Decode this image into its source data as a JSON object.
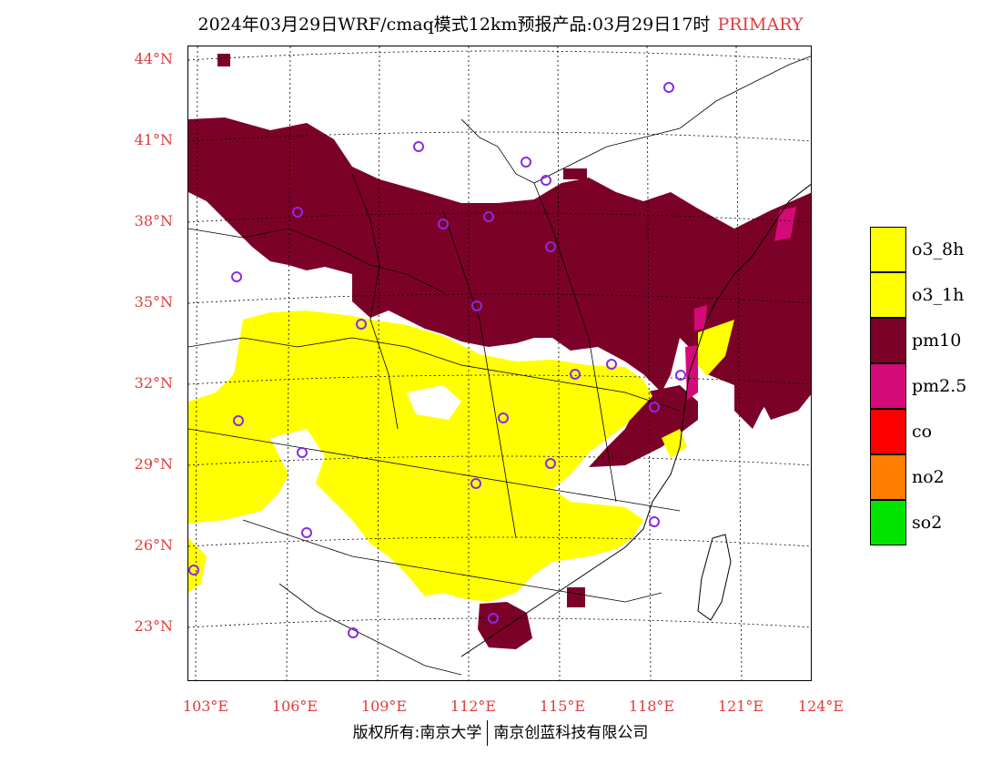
{
  "title": {
    "main": "2024年03月29日WRF/cmaq模式12km预报产品:03月29日17时",
    "tag": "PRIMARY"
  },
  "axes": {
    "lat_labels": [
      "44°N",
      "41°N",
      "38°N",
      "35°N",
      "32°N",
      "29°N",
      "26°N",
      "23°N"
    ],
    "lon_labels": [
      "103°E",
      "106°E",
      "109°E",
      "112°E",
      "115°E",
      "118°E",
      "121°E",
      "124°E"
    ]
  },
  "legend": [
    {
      "label": "o3_8h",
      "color": "#ffff00"
    },
    {
      "label": "o3_1h",
      "color": "#ffff00"
    },
    {
      "label": "pm10",
      "color": "#7c0128"
    },
    {
      "label": "pm2.5",
      "color": "#d40a78"
    },
    {
      "label": "co",
      "color": "#ff0000"
    },
    {
      "label": "no2",
      "color": "#ff7e00"
    },
    {
      "label": "so2",
      "color": "#00e400"
    }
  ],
  "colors": {
    "pm10": "#7c0128",
    "o3": "#ffff00",
    "pm25": "#d40a78",
    "station": "#8a2be2",
    "label": "#e03b3b"
  },
  "footer": {
    "left": "版权所有:南京大学",
    "right": "南京创蓝科技有限公司"
  }
}
